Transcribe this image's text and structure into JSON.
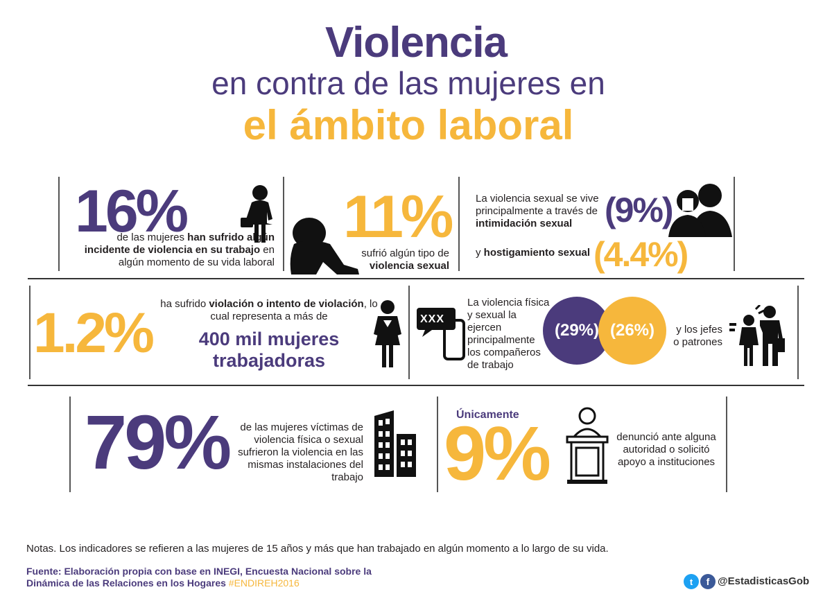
{
  "header": {
    "title_line1": "Violencia",
    "title_line2": "en contra de las mujeres en",
    "title_line3": "el ámbito laboral"
  },
  "row1": {
    "stat1": {
      "value": "16%",
      "text1": "de las mujeres ",
      "text_bold": "han sufrido algún incidente de violencia en su trabajo",
      "text2": " en algún momento de su vida laboral"
    },
    "stat2": {
      "value": "11%",
      "text1": "sufrió algún tipo de",
      "text_bold": "violencia sexual"
    },
    "stat3": {
      "text1": "La violencia sexual se vive principalmente a través de ",
      "text_bold": "intimidación sexual",
      "value1": "(9%)",
      "text3": "y ",
      "text_bold2": "hostigamiento sexual",
      "value2": "(4.4%)"
    }
  },
  "row2": {
    "stat1": {
      "value": "1.2%",
      "text1": "ha sufrido ",
      "text_bold": "violación o intento de violación",
      "text2": ", lo cual representa a más de",
      "highlight_line1": "400 mil mujeres",
      "highlight_line2": "trabajadoras"
    },
    "stat2": {
      "bubble": "XXX",
      "text": "La violencia física y sexual la ejercen principalmente los compañeros de trabajo",
      "circle1": "(29%)",
      "circle2": "(26%)",
      "text2": "y los jefes o patrones"
    }
  },
  "row3": {
    "stat1": {
      "value": "79%",
      "text": "de las mujeres víctimas de violencia física o sexual sufrieron la violencia en las mismas instalaciones del trabajo"
    },
    "stat2": {
      "label": "Únicamente",
      "value": "9%",
      "text": "denunció ante alguna autoridad o solicitó apoyo a instituciones"
    }
  },
  "footer": {
    "notes": "Notas. Los indicadores se refieren a las mujeres de 15 años y más que han trabajado en algún momento a lo largo de su vida.",
    "source_line1": "Fuente: Elaboración propia con base en INEGI, Encuesta Nacional sobre la",
    "source_line2": "Dinámica de las Relaciones en los Hogares ",
    "hashtag": "#ENDIREH2016",
    "handle": "@EstadisticasGob"
  },
  "colors": {
    "purple": "#4b3b7c",
    "gold": "#f6b73c",
    "twitter": "#1da1f2",
    "facebook": "#3b5998"
  }
}
